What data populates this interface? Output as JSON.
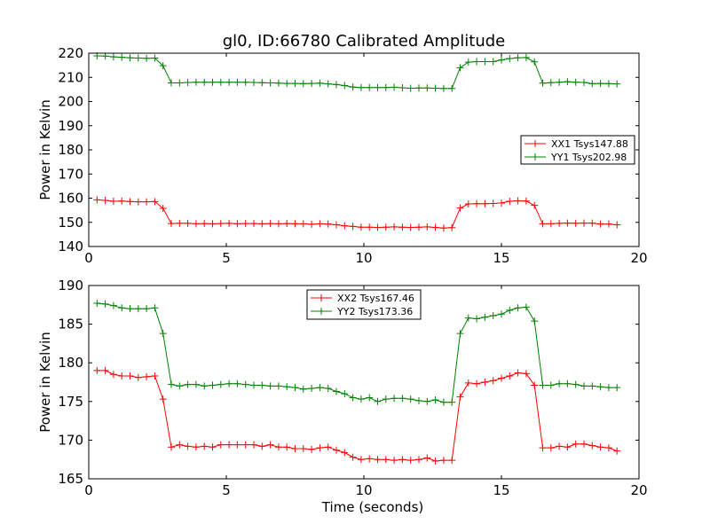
{
  "figure_title": "gl0, ID:66780 Calibrated Amplitude",
  "chart_data": [
    {
      "type": "line",
      "title": "gl0, ID:66780 Calibrated Amplitude",
      "xlabel": "",
      "ylabel": "Power in Kelvin",
      "xlim": [
        0,
        20
      ],
      "ylim": [
        140,
        220
      ],
      "x_ticks": [
        0,
        5,
        10,
        15,
        20
      ],
      "y_ticks": [
        140,
        150,
        160,
        170,
        180,
        190,
        200,
        210,
        220
      ],
      "grid": false,
      "legend_position": "center-right",
      "x": [
        0.3,
        0.6,
        0.9,
        1.2,
        1.5,
        1.8,
        2.1,
        2.4,
        2.7,
        3.0,
        3.3,
        3.6,
        3.9,
        4.2,
        4.5,
        4.8,
        5.1,
        5.4,
        5.7,
        6.0,
        6.3,
        6.6,
        6.9,
        7.2,
        7.5,
        7.8,
        8.1,
        8.4,
        8.7,
        9.0,
        9.3,
        9.6,
        9.9,
        10.2,
        10.5,
        10.8,
        11.1,
        11.4,
        11.7,
        12.0,
        12.3,
        12.6,
        12.9,
        13.2,
        13.5,
        13.8,
        14.1,
        14.4,
        14.7,
        15.0,
        15.3,
        15.6,
        15.9,
        16.2,
        16.5,
        16.8,
        17.1,
        17.4,
        17.7,
        18.0,
        18.3,
        18.6,
        18.9,
        19.2
      ],
      "series": [
        {
          "name": "XX1 Tsys147.88",
          "color": "#ff0000",
          "values": [
            159.3,
            159.1,
            158.7,
            158.8,
            158.6,
            158.5,
            158.5,
            158.6,
            155.8,
            149.5,
            149.6,
            149.6,
            149.4,
            149.5,
            149.4,
            149.5,
            149.6,
            149.4,
            149.5,
            149.5,
            149.4,
            149.5,
            149.4,
            149.5,
            149.4,
            149.4,
            149.2,
            149.4,
            149.3,
            149.0,
            148.6,
            148.3,
            148.0,
            148.0,
            147.9,
            148.0,
            148.1,
            148.0,
            147.9,
            148.0,
            148.1,
            147.9,
            147.6,
            147.8,
            155.9,
            157.6,
            157.7,
            157.7,
            157.8,
            158.0,
            158.7,
            158.9,
            158.8,
            157.0,
            149.4,
            149.4,
            149.6,
            149.7,
            149.6,
            149.7,
            149.7,
            149.3,
            149.3,
            149.0
          ]
        },
        {
          "name": "YY1 Tsys202.98",
          "color": "#008000",
          "values": [
            218.9,
            218.8,
            218.5,
            218.3,
            218.1,
            218.0,
            217.9,
            218.0,
            214.8,
            207.7,
            207.7,
            207.9,
            208.0,
            208.0,
            208.0,
            208.0,
            208.0,
            208.0,
            208.0,
            207.9,
            207.8,
            207.7,
            207.6,
            207.5,
            207.5,
            207.4,
            207.5,
            207.6,
            207.3,
            207.0,
            206.6,
            206.0,
            205.8,
            205.8,
            205.8,
            205.8,
            205.9,
            205.7,
            205.5,
            205.6,
            205.6,
            205.5,
            205.4,
            205.4,
            214.0,
            216.3,
            216.5,
            216.5,
            216.5,
            217.2,
            217.8,
            218.1,
            218.2,
            216.4,
            207.6,
            207.8,
            208.0,
            208.2,
            208.0,
            207.9,
            207.4,
            207.5,
            207.4,
            207.3
          ]
        }
      ]
    },
    {
      "type": "line",
      "title": "",
      "xlabel": "Time (seconds)",
      "ylabel": "Power in Kelvin",
      "xlim": [
        0,
        20
      ],
      "ylim": [
        165,
        190
      ],
      "x_ticks": [
        0,
        5,
        10,
        15,
        20
      ],
      "y_ticks": [
        165,
        170,
        175,
        180,
        185,
        190
      ],
      "grid": false,
      "legend_position": "top-center",
      "x": [
        0.3,
        0.6,
        0.9,
        1.2,
        1.5,
        1.8,
        2.1,
        2.4,
        2.7,
        3.0,
        3.3,
        3.6,
        3.9,
        4.2,
        4.5,
        4.8,
        5.1,
        5.4,
        5.7,
        6.0,
        6.3,
        6.6,
        6.9,
        7.2,
        7.5,
        7.8,
        8.1,
        8.4,
        8.7,
        9.0,
        9.3,
        9.6,
        9.9,
        10.2,
        10.5,
        10.8,
        11.1,
        11.4,
        11.7,
        12.0,
        12.3,
        12.6,
        12.9,
        13.2,
        13.5,
        13.8,
        14.1,
        14.4,
        14.7,
        15.0,
        15.3,
        15.6,
        15.9,
        16.2,
        16.5,
        16.8,
        17.1,
        17.4,
        17.7,
        18.0,
        18.3,
        18.6,
        18.9,
        19.2
      ],
      "series": [
        {
          "name": "XX2 Tsys167.46",
          "color": "#ff0000",
          "values": [
            179.0,
            179.0,
            178.5,
            178.3,
            178.3,
            178.1,
            178.2,
            178.3,
            175.3,
            169.1,
            169.4,
            169.2,
            169.1,
            169.2,
            169.1,
            169.4,
            169.4,
            169.4,
            169.4,
            169.4,
            169.2,
            169.4,
            169.1,
            169.1,
            168.9,
            168.9,
            168.8,
            169.0,
            169.1,
            168.7,
            168.4,
            167.8,
            167.5,
            167.6,
            167.5,
            167.5,
            167.4,
            167.5,
            167.4,
            167.5,
            167.7,
            167.3,
            167.4,
            167.4,
            175.6,
            177.4,
            177.3,
            177.5,
            177.7,
            178.0,
            178.3,
            178.7,
            178.6,
            177.1,
            169.0,
            169.0,
            169.2,
            169.1,
            169.5,
            169.5,
            169.3,
            169.1,
            169.0,
            168.6
          ]
        },
        {
          "name": "YY2 Tsys173.36",
          "color": "#008000",
          "values": [
            187.7,
            187.6,
            187.4,
            187.1,
            187.0,
            187.0,
            187.0,
            187.1,
            183.8,
            177.2,
            177.0,
            177.2,
            177.2,
            177.0,
            177.1,
            177.2,
            177.3,
            177.3,
            177.2,
            177.1,
            177.1,
            177.0,
            177.0,
            176.9,
            176.8,
            176.6,
            176.7,
            176.8,
            176.7,
            176.3,
            176.0,
            175.5,
            175.3,
            175.5,
            175.0,
            175.3,
            175.4,
            175.4,
            175.3,
            175.1,
            175.0,
            175.2,
            174.9,
            174.9,
            183.8,
            185.8,
            185.7,
            185.9,
            186.1,
            186.3,
            186.8,
            187.1,
            187.2,
            185.4,
            177.1,
            177.1,
            177.3,
            177.3,
            177.2,
            177.0,
            177.0,
            176.9,
            176.8,
            176.8
          ]
        }
      ]
    }
  ]
}
